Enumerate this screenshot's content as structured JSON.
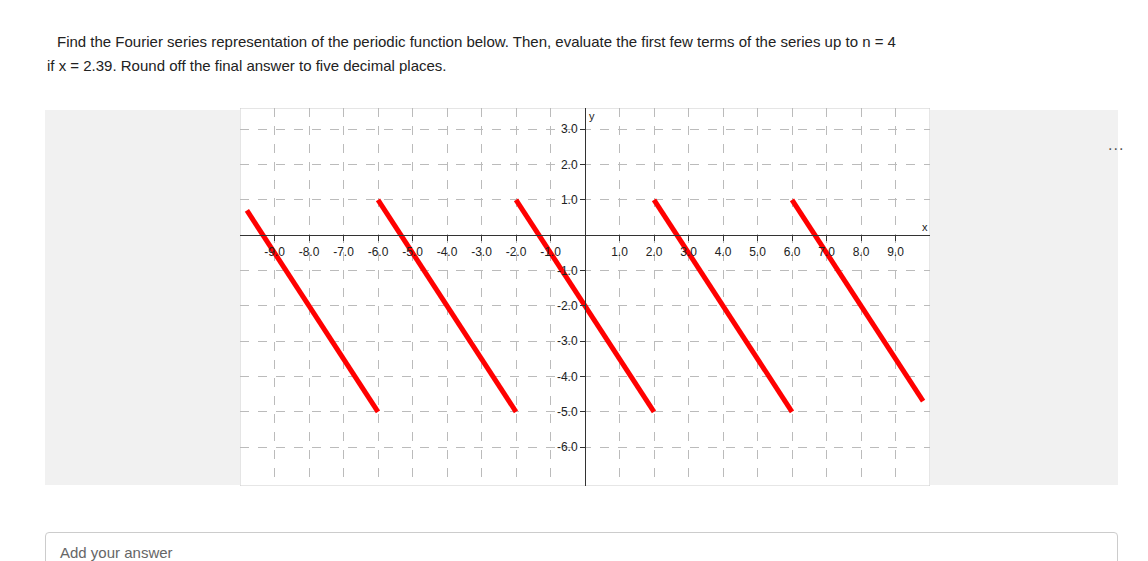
{
  "question": [
    "Find the Fourier series representation of the periodic function below. Then, evaluate the first few terms of the series up to n = 4",
    "if x = 2.39. Round off the final answer to five decimal places."
  ],
  "menu": "...",
  "answer_placeholder": "Add your answer",
  "chart_data": {
    "type": "line",
    "xlabel": "x",
    "ylabel": "y",
    "x": [
      -9.8,
      -6,
      null,
      -6,
      -2,
      null,
      -2,
      2,
      null,
      2,
      6,
      null,
      6,
      9.8
    ],
    "values": [
      0.7,
      -5,
      null,
      1,
      -5,
      null,
      1,
      -5,
      null,
      1,
      -5,
      null,
      1,
      -4.7
    ],
    "color": "#ff0000",
    "xlim": [
      -10,
      10
    ],
    "ylim": [
      -7.1,
      3.6
    ],
    "xticks": [
      {
        "value": -9,
        "label": "-9.0"
      },
      {
        "value": -8,
        "label": "-8.0"
      },
      {
        "value": -7,
        "label": "-7.0"
      },
      {
        "value": -6,
        "label": "-6.0"
      },
      {
        "value": -5,
        "label": "-5.0"
      },
      {
        "value": -4,
        "label": "-4.0"
      },
      {
        "value": -3,
        "label": "-3.0"
      },
      {
        "value": -2,
        "label": "-2.0"
      },
      {
        "value": -1,
        "label": "-1.0"
      },
      {
        "value": 1,
        "label": "1.0"
      },
      {
        "value": 2,
        "label": "2.0"
      },
      {
        "value": 3,
        "label": "3.0"
      },
      {
        "value": 4,
        "label": "4.0"
      },
      {
        "value": 5,
        "label": "5.0"
      },
      {
        "value": 6,
        "label": "6.0"
      },
      {
        "value": 7,
        "label": "7.0"
      },
      {
        "value": 8,
        "label": "8.0"
      },
      {
        "value": 9,
        "label": "9.0"
      }
    ],
    "yticks": [
      {
        "value": 3,
        "label": "3.0"
      },
      {
        "value": 2,
        "label": "2.0"
      },
      {
        "value": 1,
        "label": "1.0"
      },
      {
        "value": -1,
        "label": "-1.0"
      },
      {
        "value": -2,
        "label": "-2.0"
      },
      {
        "value": -3,
        "label": "-3.0"
      },
      {
        "value": -4,
        "label": "-4.0"
      },
      {
        "value": -5,
        "label": "-5.0"
      },
      {
        "value": -6,
        "label": "-6.0"
      }
    ],
    "grid": true
  }
}
